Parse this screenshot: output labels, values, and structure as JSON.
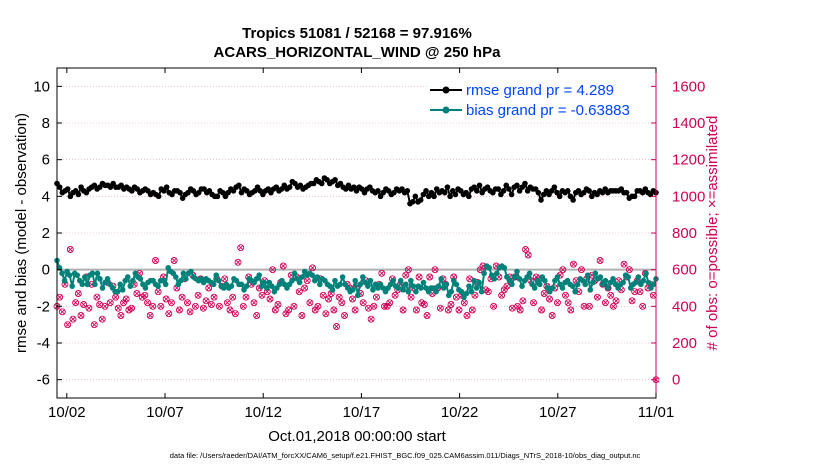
{
  "chart_data": {
    "type": "line",
    "title_line1": "Tropics 51081 / 52168 = 97.916%",
    "title_line2": "ACARS_HORIZONTAL_WIND @ 250 hPa",
    "ylabel_left": "rmse and bias (model - observation)",
    "ylabel_right": "# of obs: o=possible; ×=assimilated",
    "xlabel": "Oct.01,2018 00:00:00 start",
    "footnote": "data file: /Users/raeder/DAI/ATM_forcXX/CAM6_setup/f.e21.FHIST_BGC.f09_025.CAM6assim.011/Diags_NTrS_2018-10/obs_diag_output.nc",
    "xlim": [
      1.5,
      32.0
    ],
    "ylim_left": [
      -7,
      11
    ],
    "ylim_right": [
      -100,
      1700
    ],
    "x_ticks": [
      2,
      7,
      12,
      17,
      22,
      27,
      32
    ],
    "x_tick_labels": [
      "10/02",
      "10/07",
      "10/12",
      "10/17",
      "10/22",
      "10/27",
      "11/01"
    ],
    "y_ticks_left": [
      -6,
      -4,
      -2,
      0,
      2,
      4,
      6,
      8,
      10
    ],
    "y_ticks_right": [
      0,
      200,
      400,
      600,
      800,
      1000,
      1200,
      1400,
      1600
    ],
    "zero_line": 0,
    "legend": [
      {
        "label": "rmse grand pr = 4.289",
        "color": "#000000"
      },
      {
        "label": "bias grand pr = -0.63883",
        "color": "#00827a"
      }
    ],
    "colors": {
      "rmse": "#000000",
      "bias": "#00827a",
      "obs": "#d10057",
      "zero": "#b0b0b0"
    },
    "series": [
      {
        "name": "rmse",
        "values": [
          4.7,
          4.5,
          4.2,
          4.3,
          4.4,
          4.0,
          4.2,
          4.3,
          4.1,
          4.5,
          4.3,
          4.2,
          4.4,
          4.5,
          4.6,
          4.4,
          4.5,
          4.7,
          4.6,
          4.6,
          4.5,
          4.7,
          4.5,
          4.5,
          4.6,
          4.4,
          4.5,
          4.4,
          4.3,
          4.5,
          4.4,
          4.2,
          4.3,
          4.4,
          4.3,
          4.1,
          4.2,
          4.1,
          4.0,
          4.4,
          4.3,
          4.5,
          4.2,
          4.1,
          4.3,
          4.3,
          4.2,
          3.9,
          4.1,
          4.2,
          4.4,
          4.3,
          4.1,
          4.2,
          4.4,
          4.4,
          4.2,
          4.3,
          4.1,
          4.0,
          4.0,
          4.3,
          4.2,
          4.0,
          4.2,
          4.4,
          4.3,
          4.5,
          4.6,
          4.2,
          4.4,
          4.3,
          4.1,
          4.2,
          4.3,
          4.5,
          4.3,
          4.1,
          4.3,
          4.4,
          4.2,
          4.4,
          4.5,
          4.3,
          4.4,
          4.6,
          4.4,
          4.5,
          4.8,
          4.7,
          4.5,
          4.6,
          4.4,
          4.5,
          4.6,
          4.7,
          4.7,
          4.9,
          4.8,
          4.7,
          5.0,
          4.9,
          4.7,
          4.8,
          4.9,
          4.6,
          4.7,
          4.5,
          4.4,
          4.6,
          4.4,
          4.5,
          4.3,
          4.5,
          4.4,
          4.2,
          4.4,
          4.5,
          4.3,
          4.2,
          4.3,
          4.0,
          4.2,
          4.4,
          4.3,
          4.1,
          4.2,
          4.4,
          4.3,
          4.4,
          4.2,
          4.3,
          3.6,
          3.7,
          4.0,
          3.7,
          3.8,
          4.1,
          4.3,
          4.0,
          4.2,
          4.0,
          4.4,
          4.2,
          4.3,
          4.2,
          4.5,
          4.0,
          4.3,
          4.1,
          4.4,
          4.3,
          4.1,
          4.2,
          4.0,
          4.4,
          4.5,
          4.3,
          4.6,
          4.2,
          4.4,
          4.5,
          4.3,
          4.2,
          4.4,
          4.4,
          4.1,
          4.3,
          4.6,
          4.4,
          4.1,
          4.5,
          4.6,
          4.3,
          4.5,
          4.7,
          4.3,
          4.5,
          4.4,
          4.4,
          4.2,
          3.8,
          4.1,
          4.3,
          4.1,
          4.3,
          4.5,
          4.2,
          4.0,
          4.3,
          4.2,
          4.3,
          4.0,
          3.8,
          4.2,
          4.3,
          4.1,
          4.2,
          4.4,
          4.3,
          4.0,
          4.2,
          4.1,
          4.3,
          4.2,
          4.4,
          4.2,
          4.3,
          4.3,
          4.3,
          4.3,
          4.4,
          4.2,
          4.2,
          3.9,
          4.0,
          4.0,
          4.3,
          4.3,
          4.2,
          4.4,
          4.2,
          4.1,
          4.3,
          4.2
        ]
      },
      {
        "name": "bias",
        "values": [
          0.5,
          0.1,
          -0.2,
          -0.6,
          -0.1,
          -0.3,
          -0.9,
          -0.2,
          -0.3,
          -0.6,
          -0.8,
          -0.4,
          -0.8,
          -0.3,
          -0.2,
          -0.8,
          -0.2,
          -0.5,
          -1.0,
          -0.7,
          -0.5,
          -0.8,
          -1.0,
          -1.2,
          -1.2,
          -0.8,
          -1.1,
          -0.6,
          -0.4,
          -0.9,
          -0.6,
          -0.2,
          -0.4,
          -0.5,
          -0.8,
          -1.0,
          -0.7,
          -0.6,
          -0.6,
          -0.8,
          -0.9,
          -0.6,
          -0.6,
          -0.8,
          0.1,
          -0.1,
          -0.2,
          -0.4,
          -0.8,
          -0.6,
          -0.2,
          -0.5,
          -0.2,
          -0.1,
          -0.4,
          -0.5,
          -0.6,
          -0.5,
          -0.7,
          -0.5,
          -0.6,
          -0.7,
          -0.8,
          -0.3,
          -0.6,
          -0.9,
          -1.0,
          -0.8,
          -1.0,
          -0.9,
          -0.5,
          -0.6,
          -0.8,
          -0.8,
          -1.1,
          -0.9,
          -0.5,
          -0.6,
          -0.7,
          -0.5,
          -0.3,
          -0.9,
          -0.7,
          -1.0,
          -0.7,
          -0.9,
          -1.2,
          -1.0,
          -0.8,
          -0.6,
          -0.8,
          -1.0,
          -0.8,
          -0.6,
          -0.2,
          -0.5,
          -0.7,
          -0.4,
          -0.1,
          -0.3,
          -0.2,
          -0.3,
          -0.6,
          -0.4,
          -0.8,
          -0.5,
          -0.6,
          -0.8,
          -0.9,
          -1.1,
          -0.6,
          -0.9,
          -0.8,
          -0.4,
          -0.8,
          -1.0,
          -1.2,
          -1.1,
          -0.6,
          -1.4,
          -0.8,
          -0.4,
          -0.7,
          -0.9,
          -0.6,
          -1.1,
          -0.8,
          -1.0,
          -0.8,
          -1.0,
          -1.2,
          -1.0,
          -0.8,
          -0.6,
          -0.9,
          -1.0,
          -0.6,
          -1.1,
          -0.8,
          -1.2,
          -0.6,
          -0.9,
          -1.2,
          -0.9,
          -1.0,
          -0.7,
          -1.0,
          -1.2,
          -1.0,
          -1.0,
          -1.2,
          -0.9,
          -0.5,
          -1.0,
          -0.8,
          -1.4,
          -1.2,
          -0.6,
          -0.8,
          -1.1,
          -1.2,
          -1.5,
          -1.3,
          -0.9,
          -1.2,
          -0.6,
          -1.0,
          -0.7,
          -1.2,
          -0.2,
          0.2,
          0.1,
          -0.3,
          -0.5,
          -0.2,
          0.1,
          0.2,
          0.1,
          -0.4,
          -0.6,
          -0.8,
          -0.4,
          -0.1,
          -0.5,
          -0.9,
          -0.6,
          -0.4,
          -0.2,
          -0.8,
          -1.0,
          -0.6,
          -0.8,
          -0.4,
          -0.6,
          -1.0,
          -1.2,
          -1.0,
          -0.6,
          -0.4,
          -0.8,
          -1.0,
          -0.7,
          -0.6,
          -0.8,
          -0.9,
          -1.2,
          -0.8,
          -0.5,
          -0.6,
          -0.8,
          -0.3,
          -1.1,
          -0.7,
          -0.2,
          -0.5,
          -0.4,
          -0.8,
          -0.6,
          -1.0,
          -0.7,
          -0.5,
          -0.8,
          -1.0,
          -0.8,
          -0.7,
          -0.3,
          -0.4,
          -1.0,
          -0.8,
          -0.7,
          -0.4,
          -0.8,
          -0.6,
          -0.2,
          -0.7,
          -1.0,
          -0.8,
          -0.5
        ]
      },
      {
        "name": "obs_possible",
        "values": [
          400,
          450,
          370,
          520,
          300,
          710,
          330,
          420,
          470,
          350,
          410,
          560,
          390,
          520,
          300,
          450,
          410,
          330,
          400,
          530,
          420,
          510,
          450,
          390,
          350,
          420,
          440,
          380,
          390,
          520,
          470,
          580,
          450,
          460,
          420,
          350,
          400,
          650,
          480,
          400,
          560,
          440,
          360,
          420,
          650,
          500,
          380,
          450,
          550,
          420,
          370,
          570,
          400,
          460,
          550,
          390,
          430,
          500,
          410,
          450,
          550,
          400,
          510,
          550,
          420,
          380,
          450,
          360,
          640,
          720,
          400,
          450,
          560,
          520,
          420,
          350,
          500,
          460,
          540,
          480,
          440,
          600,
          380,
          410,
          530,
          620,
          360,
          380,
          570,
          400,
          560,
          480,
          350,
          500,
          540,
          420,
          610,
          380,
          400,
          550,
          460,
          360,
          440,
          470,
          380,
          290,
          450,
          420,
          350,
          520,
          500,
          440,
          380,
          510,
          470,
          420,
          540,
          390,
          330,
          400,
          450,
          520,
          580,
          400,
          400,
          420,
          550,
          460,
          490,
          520,
          380,
          570,
          600,
          450,
          500,
          380,
          560,
          420,
          410,
          350,
          560,
          470,
          600,
          500,
          390,
          550,
          520,
          380,
          410,
          560,
          450,
          380,
          460,
          420,
          350,
          550,
          380,
          460,
          530,
          600,
          620,
          490,
          480,
          550,
          400,
          620,
          560,
          460,
          490,
          510,
          560,
          390,
          560,
          400,
          380,
          430,
          710,
          680,
          540,
          420,
          560,
          550,
          380,
          470,
          510,
          440,
          350,
          500,
          420,
          570,
          600,
          460,
          420,
          380,
          630,
          540,
          480,
          600,
          400,
          550,
          400,
          570,
          540,
          450,
          650,
          520,
          420,
          500,
          460,
          400,
          430,
          540,
          490,
          630,
          560,
          600,
          430,
          480,
          540,
          480,
          400,
          580,
          500,
          520,
          460,
          0
        ]
      }
    ]
  }
}
